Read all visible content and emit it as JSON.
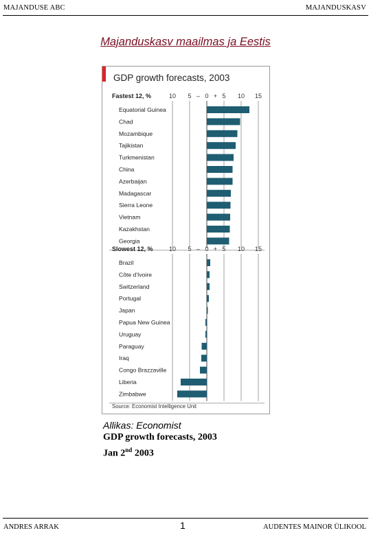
{
  "header": {
    "left": "MAJANDUSE ABC",
    "right": "MAJANDUSKASV"
  },
  "page_title": "Majanduskasv maailmas ja Eestis",
  "chart_data": {
    "type": "bar",
    "orientation": "horizontal",
    "title": "GDP growth forecasts, 2003",
    "xlim": [
      -10,
      15
    ],
    "tick_labels": [
      "10",
      "5",
      "–",
      "0",
      "+",
      "5",
      "10",
      "15"
    ],
    "source": "Source: Economist Intelligence Unit",
    "accent_color": "#e0222a",
    "bar_color": "#1f5d72",
    "groups": [
      {
        "label": "Fastest 12, %",
        "categories": [
          "Equatorial Guinea",
          "Chad",
          "Mozambique",
          "Tajikistan",
          "Turkmenistan",
          "China",
          "Azerbaijan",
          "Madagascar",
          "Sierra Leone",
          "Vietnam",
          "Kazakhstan",
          "Georgia"
        ],
        "values": [
          12.4,
          9.7,
          8.9,
          8.4,
          7.8,
          7.5,
          7.5,
          7.0,
          6.9,
          6.8,
          6.7,
          6.5
        ]
      },
      {
        "label": "Slowest 12, %",
        "categories": [
          "Brazil",
          "Côte d'Ivoire",
          "Switzerland",
          "Portugal",
          "Japan",
          "Papua New Guinea",
          "Uruguay",
          "Paraguay",
          "Iraq",
          "Congo Brazzaville",
          "Liberia",
          "Zimbabwe"
        ],
        "values": [
          1.0,
          0.8,
          0.8,
          0.6,
          0.3,
          -0.4,
          -0.4,
          -1.5,
          -1.6,
          -2.0,
          -7.6,
          -8.6
        ]
      }
    ]
  },
  "caption": {
    "source_line": "Allikas: Economist",
    "line2": "GDP growth forecasts, 2003",
    "line3_prefix": "Jan 2",
    "line3_sup": "nd",
    "line3_suffix": " 2003"
  },
  "footer": {
    "left": "ANDRES ARRAK",
    "page": "1",
    "right": "AUDENTES MAINOR ÜLIKOOL"
  }
}
